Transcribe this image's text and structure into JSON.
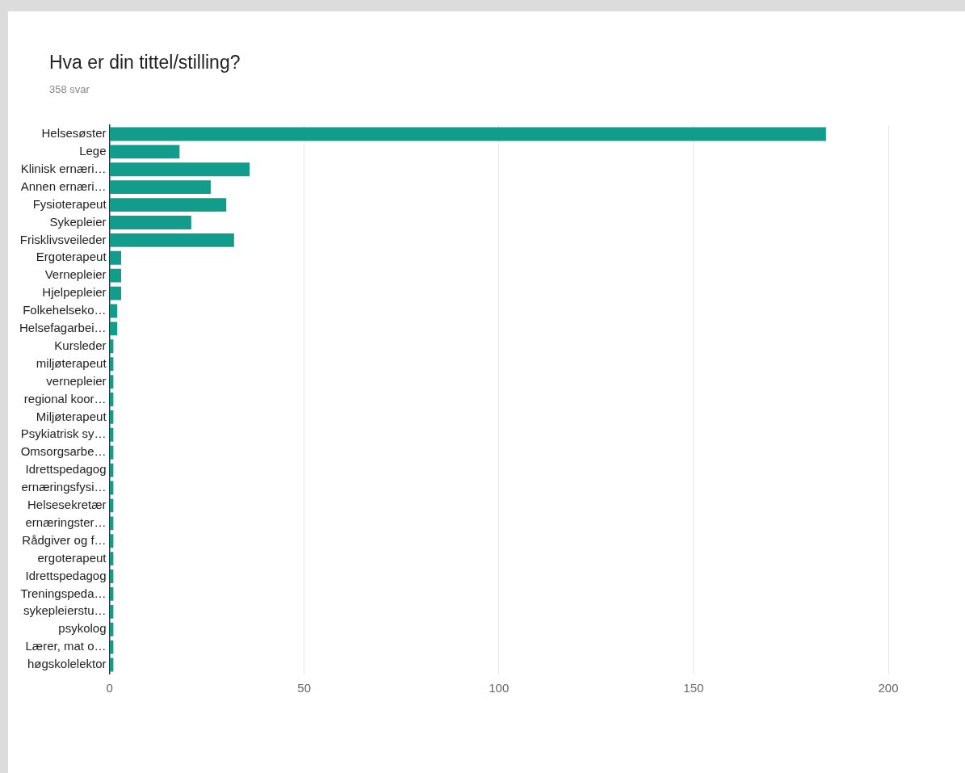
{
  "chart_data": {
    "type": "bar",
    "orientation": "horizontal",
    "title": "Hva er din tittel/stilling?",
    "subtitle": "358 svar",
    "categories": [
      "Helsesøster",
      "Lege",
      "Klinisk ernæri…",
      "Annen ernæri…",
      "Fysioterapeut",
      "Sykepleier",
      "Frisklivsveileder",
      "Ergoterapeut",
      "Vernepleier",
      "Hjelpepleier",
      "Folkehelseko…",
      "Helsefagarbei…",
      "Kursleder",
      "miljøterapeut",
      "vernepleier",
      "regional koor…",
      "Miljøterapeut",
      "Psykiatrisk sy…",
      "Omsorgsarbe…",
      "Idrettspedagog",
      "ernæringsfysi…",
      "Helsesekretær",
      "ernæringster…",
      "Rådgiver og f…",
      "ergoterapeut",
      "Idrettspedagog",
      "Treningspeda…",
      "sykepleierstu…",
      "psykolog",
      "Lærer, mat o…",
      "høgskolelektor"
    ],
    "values": [
      184,
      18,
      36,
      26,
      30,
      21,
      32,
      3,
      3,
      3,
      2,
      2,
      1,
      1,
      1,
      1,
      1,
      1,
      1,
      1,
      1,
      1,
      1,
      1,
      1,
      1,
      1,
      1,
      1,
      1,
      1
    ],
    "color": "#129c8c",
    "xlim": [
      0,
      200
    ],
    "xticks": [
      0,
      50,
      100,
      150,
      200
    ],
    "grid": "x",
    "legend": false
  }
}
